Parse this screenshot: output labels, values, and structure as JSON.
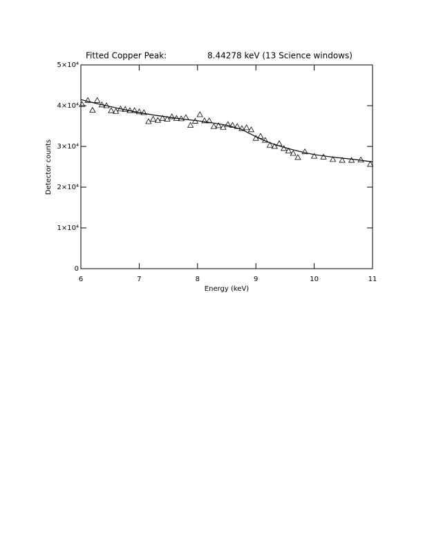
{
  "chart_data": {
    "type": "scatter",
    "title": "Fitted Copper Peak:",
    "subtitle": "8.44278 keV (13 Science windows)",
    "x_label": "Energy (keV)",
    "y_label": "Detector counts",
    "xlim": [
      6,
      11
    ],
    "ylim": [
      0,
      50000
    ],
    "xticks": [
      6,
      7,
      8,
      9,
      10,
      11
    ],
    "yticks": [
      0,
      {
        "value": 10000,
        "label": "1×10⁴"
      },
      {
        "value": 20000,
        "label": "2×10⁴"
      },
      {
        "value": 30000,
        "label": "3×10⁴"
      },
      {
        "value": 40000,
        "label": "4×10⁴"
      },
      {
        "value": 50000,
        "label": "5×10⁴"
      }
    ],
    "series": [
      {
        "mode": "markers",
        "marker": "triangle",
        "color": "#000000",
        "x": [
          6.02,
          6.12,
          6.2,
          6.28,
          6.36,
          6.44,
          6.52,
          6.6,
          6.68,
          6.76,
          6.84,
          6.92,
          7.0,
          7.08,
          7.16,
          7.24,
          7.32,
          7.4,
          7.48,
          7.56,
          7.64,
          7.72,
          7.8,
          7.88,
          7.96,
          8.04,
          8.12,
          8.2,
          8.28,
          8.36,
          8.44,
          8.52,
          8.6,
          8.68,
          8.76,
          8.84,
          8.92,
          9.0,
          9.08,
          9.16,
          9.24,
          9.32,
          9.4,
          9.48,
          9.56,
          9.64,
          9.72,
          9.84,
          10.0,
          10.16,
          10.32,
          10.48,
          10.64,
          10.8,
          10.96
        ],
        "values": [
          40300,
          41300,
          38900,
          41300,
          40200,
          40000,
          38800,
          38600,
          39200,
          39100,
          38800,
          38800,
          38500,
          38300,
          36100,
          36700,
          36400,
          36900,
          36700,
          37300,
          36900,
          36800,
          37100,
          35200,
          36200,
          37800,
          36300,
          36300,
          34900,
          35100,
          34700,
          35400,
          35200,
          34900,
          34400,
          34600,
          34100,
          32000,
          32500,
          31500,
          30300,
          30000,
          30700,
          29500,
          28900,
          28300,
          27300,
          28700,
          27600,
          27400,
          26800,
          26600,
          26600,
          26700,
          25600
        ]
      },
      {
        "mode": "line",
        "color": "#000000",
        "x": [
          6.0,
          6.25,
          6.5,
          6.75,
          7.0,
          7.25,
          7.5,
          7.75,
          8.0,
          8.25,
          8.5,
          8.75,
          9.0,
          9.15,
          9.3,
          9.45,
          9.6,
          9.8,
          10.0,
          10.25,
          10.5,
          10.75,
          11.0
        ],
        "values": [
          41500,
          40600,
          39800,
          39000,
          38300,
          37700,
          37200,
          36700,
          36300,
          35800,
          35200,
          34200,
          32400,
          31400,
          30600,
          29900,
          29300,
          28600,
          28000,
          27500,
          27100,
          26700,
          26200
        ]
      }
    ]
  }
}
